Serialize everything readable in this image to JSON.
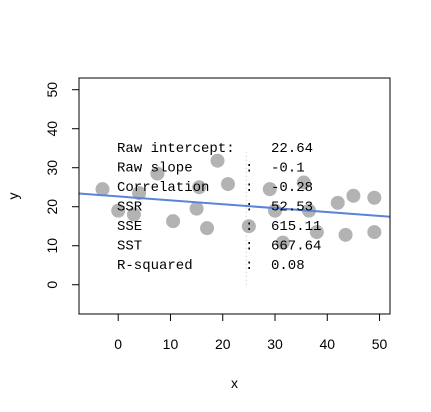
{
  "chart_data": {
    "type": "scatter",
    "title": "",
    "xlabel": "x",
    "ylabel": "y",
    "xlim": [
      -7.5,
      52
    ],
    "ylim": [
      -7.5,
      53
    ],
    "x_ticks": [
      0,
      10,
      20,
      30,
      40,
      50
    ],
    "y_ticks": [
      0,
      10,
      20,
      30,
      40,
      50
    ],
    "grid": false,
    "point_color": "#b3b3b3",
    "line_color": "#5b84d8",
    "points": [
      {
        "x": -3,
        "y": 24.5
      },
      {
        "x": 0,
        "y": 19
      },
      {
        "x": 3,
        "y": 18
      },
      {
        "x": 4,
        "y": 23.5
      },
      {
        "x": 7.5,
        "y": 28.5
      },
      {
        "x": 10.5,
        "y": 16.3
      },
      {
        "x": 15,
        "y": 19.5
      },
      {
        "x": 15.5,
        "y": 25
      },
      {
        "x": 17,
        "y": 14.5
      },
      {
        "x": 19,
        "y": 31.8
      },
      {
        "x": 21,
        "y": 25.8
      },
      {
        "x": 25,
        "y": 15
      },
      {
        "x": 29,
        "y": 24.5
      },
      {
        "x": 30,
        "y": 19
      },
      {
        "x": 31.5,
        "y": 10.8
      },
      {
        "x": 35.5,
        "y": 26.2
      },
      {
        "x": 36.5,
        "y": 19
      },
      {
        "x": 38,
        "y": 13.5
      },
      {
        "x": 42,
        "y": 21
      },
      {
        "x": 43.5,
        "y": 12.8
      },
      {
        "x": 45,
        "y": 22.8
      },
      {
        "x": 49,
        "y": 22.3
      },
      {
        "x": 49,
        "y": 13.5
      }
    ],
    "regression": {
      "intercept": 22.64,
      "slope": -0.1
    },
    "midline_x": 24.5,
    "stats": [
      {
        "label": "Raw intercept:",
        "value": "22.64"
      },
      {
        "label": "Raw slope     :",
        "value": "-0.1"
      },
      {
        "label": "Correlation :",
        "value": "-0.28"
      },
      {
        "label": "SSR          :",
        "value": "52.53"
      },
      {
        "label": "SSE          :",
        "value": "615.11"
      },
      {
        "label": "SST          :",
        "value": "667.64"
      },
      {
        "label": "R-squared    :",
        "value": "0.08"
      }
    ]
  }
}
